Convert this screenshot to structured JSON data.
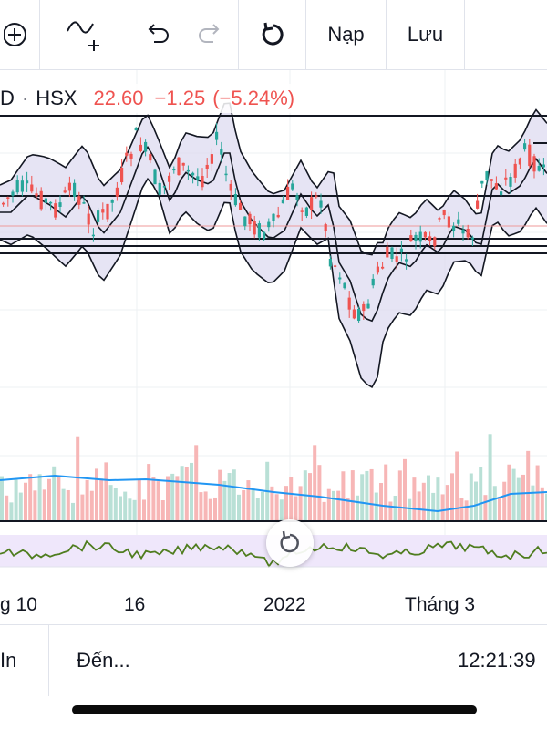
{
  "toolbar": {
    "load_label": "Nạp",
    "save_label": "Lưu",
    "icons": [
      "add-circle-icon",
      "indicator-add-icon",
      "undo-icon",
      "redo-icon",
      "reload-icon"
    ]
  },
  "symbol": {
    "prefix": "D",
    "separator": "·",
    "exchange": "HSX",
    "price": "22.60",
    "change": "−1.25",
    "change_pct": "(−5.24%)"
  },
  "time_axis": {
    "labels": [
      "g 10",
      "16",
      "2022",
      "Tháng 3"
    ]
  },
  "bottom": {
    "interval_label": "In",
    "goto_label": "Đến...",
    "clock": "12:21:39"
  },
  "colors": {
    "up": "#26a69a",
    "down": "#ef5350",
    "band_fill": "#dcd9f0",
    "volume_ma": "#2196f3",
    "oscillator_line": "#4f7d1f",
    "oscillator_fill": "#efe7fb"
  }
}
